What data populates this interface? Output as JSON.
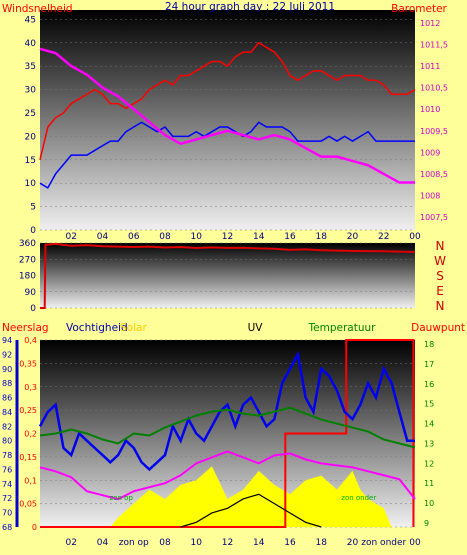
{
  "title": "24 hour graph day : 22 Juli 2011",
  "x_ticks": [
    "02",
    "04",
    "06",
    "08",
    "10",
    "12",
    "14",
    "16",
    "18",
    "20",
    "22",
    "00"
  ],
  "x_ticks_bottom": [
    "02",
    "04",
    "zon op",
    "08",
    "10",
    "12",
    "14",
    "16",
    "18",
    "20",
    "zon onder",
    "00"
  ],
  "colors": {
    "background": "#ffff99",
    "wind": "#ff0000",
    "gust": "#0000ff",
    "barometer": "#ff00ff",
    "direction": "#dd0000",
    "humidity": "#0000ee",
    "temperature": "#008000",
    "dewpoint": "#ff00ff",
    "rain": "#ff0000",
    "solar": "#ffff00",
    "uv": "#000000"
  },
  "chart_data": [
    {
      "type": "line",
      "panel": "wind-barometer",
      "title": "24 hour graph day : 22 Juli 2011",
      "ylabel_left": "Windsnelheid",
      "ylabel_right": "Barometer",
      "y_left_ticks": [
        "0",
        "5",
        "10",
        "15",
        "20",
        "25",
        "30",
        "35",
        "40",
        "45"
      ],
      "ylim_left": [
        0,
        47
      ],
      "y_right_ticks": [
        "1007,5",
        "1008",
        "1008,5",
        "1009",
        "1009,5",
        "1010",
        "1010,5",
        "1011",
        "1011,5",
        "1012"
      ],
      "ylim_right": [
        1007.2,
        1012.3
      ],
      "xlim": [
        0,
        24
      ],
      "series": [
        {
          "name": "wind",
          "color": "#ff0000",
          "x": [
            0,
            0.5,
            1,
            1.5,
            2,
            2.5,
            3,
            3.5,
            4,
            4.5,
            5,
            5.5,
            6,
            6.5,
            7,
            7.5,
            8,
            8.5,
            9,
            9.5,
            10,
            10.5,
            11,
            11.5,
            12,
            12.5,
            13,
            13.5,
            14,
            14.5,
            15,
            15.5,
            16,
            16.5,
            17,
            17.5,
            18,
            18.5,
            19,
            19.5,
            20,
            20.5,
            21,
            21.5,
            22,
            22.5,
            23,
            23.5,
            24
          ],
          "y": [
            15,
            22,
            24,
            25,
            27,
            28,
            29,
            30,
            29,
            27,
            27,
            26,
            27,
            28,
            30,
            31,
            32,
            31,
            33,
            33,
            34,
            35,
            36,
            36,
            35,
            37,
            38,
            38,
            40,
            39,
            38,
            36,
            33,
            32,
            33,
            34,
            34,
            33,
            32,
            33,
            33,
            33,
            32,
            32,
            31,
            29,
            29,
            29,
            30
          ]
        },
        {
          "name": "gust",
          "color": "#0000ff",
          "x": [
            0,
            0.5,
            1,
            1.5,
            2,
            2.5,
            3,
            3.5,
            4,
            4.5,
            5,
            5.5,
            6,
            6.5,
            7,
            7.5,
            8,
            8.5,
            9,
            9.5,
            10,
            10.5,
            11,
            11.5,
            12,
            12.5,
            13,
            13.5,
            14,
            14.5,
            15,
            15.5,
            16,
            16.5,
            17,
            17.5,
            18,
            18.5,
            19,
            19.5,
            20,
            20.5,
            21,
            21.5,
            22,
            22.5,
            23,
            23.5,
            24
          ],
          "y": [
            10,
            9,
            12,
            14,
            16,
            16,
            16,
            17,
            18,
            19,
            19,
            21,
            22,
            23,
            22,
            21,
            22,
            20,
            20,
            20,
            21,
            20,
            21,
            22,
            22,
            21,
            20,
            21,
            23,
            22,
            22,
            22,
            21,
            19,
            19,
            19,
            19,
            20,
            19,
            20,
            19,
            20,
            21,
            19,
            19,
            19,
            19,
            19,
            19
          ]
        },
        {
          "name": "barometer",
          "color": "#ff00ff",
          "x": [
            0,
            1,
            2,
            3,
            4,
            5,
            6,
            7,
            8,
            9,
            10,
            11,
            12,
            13,
            14,
            15,
            16,
            17,
            18,
            19,
            20,
            21,
            22,
            23,
            24
          ],
          "y": [
            1011.4,
            1011.3,
            1011.0,
            1010.8,
            1010.5,
            1010.3,
            1010.0,
            1009.7,
            1009.4,
            1009.2,
            1009.3,
            1009.4,
            1009.5,
            1009.4,
            1009.3,
            1009.4,
            1009.3,
            1009.1,
            1008.9,
            1008.9,
            1008.8,
            1008.7,
            1008.5,
            1008.3,
            1008.3
          ]
        }
      ]
    },
    {
      "type": "line",
      "panel": "wind-direction",
      "right_labels": [
        "N",
        "W",
        "S",
        "E",
        "N"
      ],
      "y_left_ticks": [
        "0",
        "90",
        "180",
        "270",
        "360"
      ],
      "ylim": [
        0,
        360
      ],
      "xlim": [
        0,
        24
      ],
      "series": [
        {
          "name": "direction",
          "color": "#dd0000",
          "x": [
            0,
            0.3,
            0.35,
            1,
            2,
            3,
            4,
            5,
            6,
            7,
            8,
            9,
            10,
            11,
            12,
            13,
            14,
            15,
            16,
            17,
            18,
            19,
            20,
            21,
            22,
            23,
            24
          ],
          "y": [
            0,
            0,
            350,
            355,
            345,
            348,
            342,
            340,
            338,
            340,
            335,
            338,
            332,
            336,
            333,
            334,
            330,
            328,
            322,
            325,
            320,
            318,
            316,
            315,
            314,
            312,
            310
          ]
        }
      ]
    },
    {
      "type": "line",
      "panel": "rain-humidity-solar-uv-temp-dewpoint",
      "labels": [
        "Neerslag",
        "Vochtigheid",
        "Solar",
        "UV",
        "Temperatuur",
        "Dauwpunt"
      ],
      "rain_ticks": [
        "0",
        "0,05",
        "0,1",
        "0,15",
        "0,2",
        "0,25",
        "0,3",
        "0,35",
        "0,4"
      ],
      "rain_ylim": [
        0,
        0.4
      ],
      "humidity_ticks": [
        "68",
        "70",
        "72",
        "74",
        "76",
        "78",
        "80",
        "82",
        "84",
        "86",
        "88",
        "90",
        "92",
        "94"
      ],
      "humidity_ylim": [
        68,
        94
      ],
      "temperature_ticks": [
        "9",
        "10",
        "11",
        "12",
        "13",
        "14",
        "15",
        "16",
        "17",
        "18"
      ],
      "temperature_ylim": [
        8.8,
        18.2
      ],
      "annotations": [
        "zon op",
        "zon onder"
      ],
      "xlim": [
        0,
        24
      ],
      "series": [
        {
          "name": "rain",
          "color": "#ff0000",
          "x": [
            0,
            15.7,
            15.7,
            19.6,
            19.6,
            23.9,
            23.9
          ],
          "y": [
            0,
            0,
            0.2,
            0.2,
            0.4,
            0.4,
            0
          ]
        },
        {
          "name": "humidity",
          "color": "#0000ee",
          "x": [
            0,
            0.5,
            1,
            1.5,
            2,
            2.5,
            3,
            3.5,
            4,
            4.5,
            5,
            5.5,
            6,
            6.5,
            7,
            7.5,
            8,
            8.5,
            9,
            9.5,
            10,
            10.5,
            11,
            11.5,
            12,
            12.5,
            13,
            13.5,
            14,
            14.5,
            15,
            15.5,
            16,
            16.5,
            17,
            17.5,
            18,
            18.5,
            19,
            19.5,
            20,
            20.5,
            21,
            21.5,
            22,
            22.5,
            23,
            23.5,
            24
          ],
          "y": [
            82,
            84,
            85,
            79,
            78,
            81,
            80,
            79,
            78,
            77,
            78,
            80,
            79,
            77,
            76,
            77,
            78,
            82,
            80,
            83,
            81,
            80,
            82,
            84,
            85,
            82,
            85,
            86,
            84,
            82,
            83,
            88,
            90,
            92,
            86,
            84,
            90,
            89,
            87,
            84,
            83,
            85,
            88,
            86,
            90,
            88,
            84,
            80,
            80
          ]
        },
        {
          "name": "temperature",
          "color": "#008000",
          "x": [
            0,
            1,
            2,
            3,
            4,
            5,
            6,
            7,
            8,
            9,
            10,
            11,
            12,
            13,
            14,
            15,
            16,
            17,
            18,
            19,
            20,
            21,
            22,
            23,
            24
          ],
          "y": [
            13.4,
            13.5,
            13.7,
            13.5,
            13.2,
            13.0,
            13.5,
            13.4,
            13.8,
            14.1,
            14.4,
            14.6,
            14.7,
            14.5,
            14.4,
            14.6,
            14.8,
            14.5,
            14.2,
            14.0,
            13.8,
            13.6,
            13.2,
            13.0,
            12.8
          ]
        },
        {
          "name": "dewpoint",
          "color": "#ff00ff",
          "x": [
            0,
            1,
            2,
            3,
            4,
            5,
            6,
            7,
            8,
            9,
            10,
            11,
            12,
            13,
            14,
            15,
            16,
            17,
            18,
            19,
            20,
            21,
            22,
            23,
            24
          ],
          "y": [
            11.8,
            11.6,
            11.3,
            10.6,
            10.4,
            10.2,
            10.6,
            10.8,
            11.0,
            11.4,
            12.0,
            12.3,
            12.6,
            12.3,
            12.0,
            12.4,
            12.5,
            12.2,
            12.0,
            11.9,
            11.8,
            11.6,
            11.4,
            11.2,
            10.2
          ]
        },
        {
          "name": "solar",
          "color": "#ffff00",
          "x": [
            4.5,
            5,
            6,
            7,
            8,
            9,
            10,
            11,
            12,
            13,
            14,
            15,
            16,
            17,
            18,
            19,
            20,
            20.5,
            21,
            22,
            22.5
          ],
          "y": [
            0.0,
            0.02,
            0.05,
            0.08,
            0.06,
            0.09,
            0.1,
            0.13,
            0.06,
            0.08,
            0.12,
            0.09,
            0.07,
            0.1,
            0.11,
            0.08,
            0.12,
            0.08,
            0.06,
            0.04,
            0.0
          ]
        },
        {
          "name": "uv",
          "color": "#000000",
          "x": [
            9,
            10,
            11,
            12,
            13,
            14,
            15,
            16,
            17,
            18
          ],
          "y": [
            0.0,
            0.01,
            0.03,
            0.04,
            0.06,
            0.07,
            0.05,
            0.03,
            0.01,
            0.0
          ]
        }
      ]
    }
  ]
}
